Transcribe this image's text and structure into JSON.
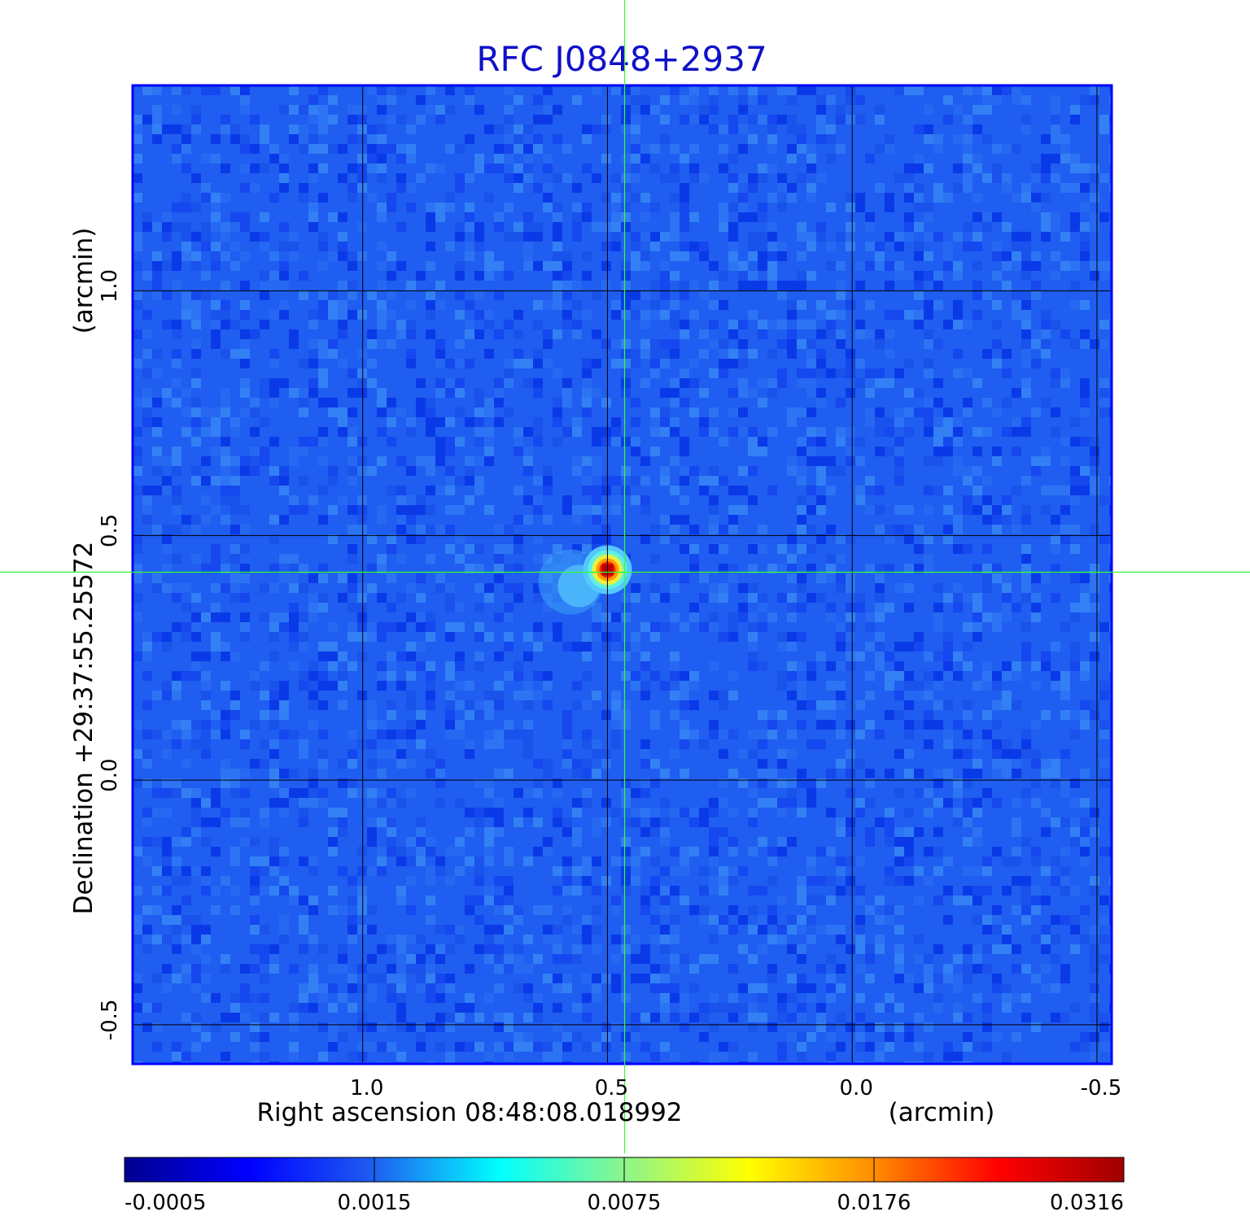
{
  "chart_data": {
    "type": "heatmap",
    "title": "RFC J0848+2937",
    "xlabel": "Right ascension  08:48:08.018992",
    "xunit": "(arcmin)",
    "ylabel": "Declination  +29:37:55.25572",
    "yunit": "(arcmin)",
    "x_ticks": [
      "1.0",
      "0.5",
      "0.0",
      "-0.5"
    ],
    "x_tick_values": [
      1.0,
      0.5,
      0.0,
      -0.5
    ],
    "y_ticks": [
      "1.0",
      "0.5",
      "0.0",
      "-0.5"
    ],
    "y_tick_values": [
      1.0,
      0.5,
      0.0,
      -0.5
    ],
    "xlim": [
      1.47,
      -0.53
    ],
    "ylim": [
      -0.58,
      1.42
    ],
    "grid": true,
    "crosshair": {
      "x": 0.465,
      "y": 0.425
    },
    "source_peak": {
      "x": 0.5,
      "y": 0.43,
      "flux": 0.0316
    },
    "colorbar": {
      "colormap": "jet",
      "ticks": [
        "-0.0005",
        "0.0015",
        "0.0075",
        "0.0176",
        "0.0316"
      ],
      "tick_values": [
        -0.0005,
        0.0015,
        0.0075,
        0.0176,
        0.0316
      ],
      "min": -0.0005,
      "max": 0.0316
    },
    "colors": {
      "title": "#1010c8",
      "background_map": "#1f5ef0",
      "crosshair": "#33ff33",
      "grid": "#000000",
      "frame": "#0000ff"
    }
  }
}
